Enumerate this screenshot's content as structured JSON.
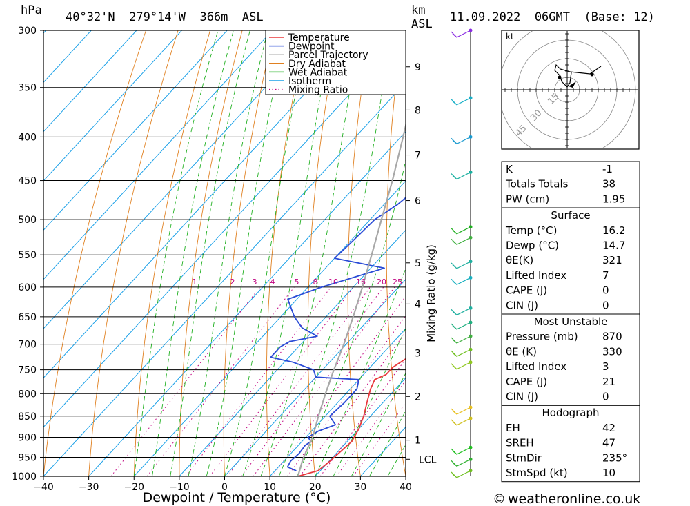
{
  "header": {
    "pressure_unit": "hPa",
    "location": "40°32'N  279°14'W  366m  ASL",
    "height_unit_top": "km",
    "height_unit_bottom": "ASL",
    "datetime": "11.09.2022  06GMT  (Base: 12)"
  },
  "axes": {
    "xlabel": "Dewpoint / Temperature (°C)",
    "right_label": "Mixing Ratio (g/kg)",
    "pressure_ticks": [
      300,
      350,
      400,
      450,
      500,
      550,
      600,
      650,
      700,
      750,
      800,
      850,
      900,
      950,
      1000
    ],
    "temp_ticks": [
      -40,
      -30,
      -20,
      -10,
      0,
      10,
      20,
      30,
      40
    ],
    "km_ticks": [
      {
        "label": "9",
        "p": 331
      },
      {
        "label": "8",
        "p": 372
      },
      {
        "label": "7",
        "p": 420
      },
      {
        "label": "6",
        "p": 475
      },
      {
        "label": "5",
        "p": 562
      },
      {
        "label": "4",
        "p": 628
      },
      {
        "label": "3",
        "p": 717
      },
      {
        "label": "2",
        "p": 806
      },
      {
        "label": "1",
        "p": 907
      }
    ],
    "lcl_label": "LCL",
    "lcl_p": 955,
    "mixing_ratio_labels": [
      "1",
      "2",
      "3",
      "4",
      "5",
      "8",
      "10",
      "16",
      "20",
      "25"
    ]
  },
  "legend": [
    "Temperature",
    "Dewpoint",
    "Parcel Trajectory",
    "Dry Adiabat",
    "Wet Adiabat",
    "Isotherm",
    "Mixing Ratio"
  ],
  "colors": {
    "temperature": "#e8383c",
    "dewpoint": "#2a4bd6",
    "parcel": "#a8a8a8",
    "dry_adiabat": "#e08020",
    "wet_adiabat": "#20b020",
    "isotherm": "#1aa0e8",
    "mixing_ratio": "#c0007f"
  },
  "chart_data": {
    "type": "line",
    "title": "40°32'N  279°14'W  366m  ASL",
    "xlabel": "Dewpoint / Temperature (°C)",
    "ylabel": "hPa",
    "xlim": [
      -40,
      40
    ],
    "ylim": [
      1000,
      300
    ],
    "series": [
      {
        "name": "Temperature",
        "points": [
          [
            1000,
            16.2
          ],
          [
            985,
            19.5
          ],
          [
            960,
            20.2
          ],
          [
            940,
            20.5
          ],
          [
            910,
            21.0
          ],
          [
            880,
            20.0
          ],
          [
            850,
            18.5
          ],
          [
            820,
            16.5
          ],
          [
            790,
            14.5
          ],
          [
            770,
            13.5
          ],
          [
            760,
            15.0
          ],
          [
            745,
            15.0
          ],
          [
            730,
            16.0
          ],
          [
            710,
            17.5
          ],
          [
            690,
            17.0
          ],
          [
            670,
            16.5
          ],
          [
            650,
            16.0
          ],
          [
            630,
            16.5
          ],
          [
            610,
            16.0
          ],
          [
            580,
            14.5
          ],
          [
            550,
            13.0
          ],
          [
            520,
            11.5
          ],
          [
            500,
            10.0
          ],
          [
            480,
            8.5
          ],
          [
            470,
            9.0
          ],
          [
            450,
            7.0
          ],
          [
            430,
            5.0
          ],
          [
            410,
            3.5
          ],
          [
            400,
            3.5
          ],
          [
            390,
            2.5
          ],
          [
            375,
            0.0
          ],
          [
            360,
            -2.0
          ],
          [
            345,
            -4.0
          ],
          [
            330,
            -4.0
          ],
          [
            315,
            -5.5
          ],
          [
            300,
            -7.0
          ]
        ]
      },
      {
        "name": "Dewpoint",
        "points": [
          [
            985,
            14.7
          ],
          [
            975,
            12.0
          ],
          [
            960,
            11.5
          ],
          [
            940,
            11.8
          ],
          [
            920,
            11.5
          ],
          [
            910,
            12.0
          ],
          [
            900,
            10.5
          ],
          [
            885,
            11.5
          ],
          [
            870,
            14.0
          ],
          [
            860,
            12.5
          ],
          [
            850,
            11.0
          ],
          [
            820,
            11.5
          ],
          [
            790,
            11.5
          ],
          [
            770,
            10.0
          ],
          [
            765,
            0.0
          ],
          [
            750,
            -2.0
          ],
          [
            735,
            -8.0
          ],
          [
            725,
            -14.0
          ],
          [
            705,
            -14.0
          ],
          [
            695,
            -13.0
          ],
          [
            685,
            -8.0
          ],
          [
            670,
            -13.0
          ],
          [
            650,
            -17.0
          ],
          [
            620,
            -22.0
          ],
          [
            600,
            -17.0
          ],
          [
            570,
            -7.0
          ],
          [
            555,
            -20.0
          ],
          [
            530,
            -19.5
          ],
          [
            500,
            -19.0
          ],
          [
            480,
            -17.0
          ],
          [
            450,
            -15.5
          ],
          [
            420,
            -14.0
          ],
          [
            405,
            -13.0
          ],
          [
            400,
            -17.0
          ],
          [
            395,
            -16.5
          ],
          [
            390,
            -11.0
          ],
          [
            385,
            -19.0
          ],
          [
            378,
            -20.0
          ],
          [
            372,
            -8.0
          ],
          [
            368,
            -4.0
          ],
          [
            365,
            -6.0
          ],
          [
            360,
            -14.0
          ],
          [
            357,
            -10.0
          ],
          [
            352,
            -7.0
          ],
          [
            348,
            -6.0
          ],
          [
            345,
            -3.5
          ],
          [
            335,
            -3.0
          ],
          [
            320,
            -4.5
          ],
          [
            310,
            -6.0
          ],
          [
            305,
            -8.0
          ],
          [
            300,
            -7.5
          ]
        ]
      },
      {
        "name": "Parcel Trajectory",
        "points": [
          [
            1000,
            16.2
          ],
          [
            955,
            13.8
          ],
          [
            900,
            11.5
          ],
          [
            850,
            8.5
          ],
          [
            800,
            5.5
          ],
          [
            750,
            2.5
          ],
          [
            700,
            -0.5
          ],
          [
            650,
            -4.0
          ],
          [
            600,
            -8.0
          ],
          [
            550,
            -12.5
          ],
          [
            500,
            -17.5
          ],
          [
            450,
            -23.0
          ],
          [
            400,
            -29.5
          ],
          [
            350,
            -37.0
          ],
          [
            300,
            -46.0
          ]
        ]
      }
    ]
  },
  "hodograph": {
    "unit": "kt",
    "ring_labels": [
      "15",
      "30",
      "45"
    ]
  },
  "indices": {
    "k_label": "K",
    "k_value": "-1",
    "tt_label": "Totals Totals",
    "tt_value": "38",
    "pw_label": "PW (cm)",
    "pw_value": "1.95",
    "surface": {
      "title": "Surface",
      "rows": [
        {
          "label": "Temp (°C)",
          "value": "16.2"
        },
        {
          "label": "Dewp (°C)",
          "value": "14.7"
        },
        {
          "label": "θE(K)",
          "value": "321"
        },
        {
          "label": "Lifted Index",
          "value": "7"
        },
        {
          "label": "CAPE (J)",
          "value": "0"
        },
        {
          "label": "CIN (J)",
          "value": "0"
        }
      ]
    },
    "most_unstable": {
      "title": "Most Unstable",
      "rows": [
        {
          "label": "Pressure (mb)",
          "value": "870"
        },
        {
          "label": "θE (K)",
          "value": "330"
        },
        {
          "label": "Lifted Index",
          "value": "3"
        },
        {
          "label": "CAPE (J)",
          "value": "21"
        },
        {
          "label": "CIN (J)",
          "value": "0"
        }
      ]
    },
    "hodograph": {
      "title": "Hodograph",
      "rows": [
        {
          "label": "EH",
          "value": "42"
        },
        {
          "label": "SREH",
          "value": "47"
        },
        {
          "label": "StmDir",
          "value": "235°"
        },
        {
          "label": "StmSpd (kt)",
          "value": "10"
        }
      ]
    }
  },
  "footer": {
    "copyright_symbol": "©",
    "site": "weatheronline.co.uk"
  }
}
